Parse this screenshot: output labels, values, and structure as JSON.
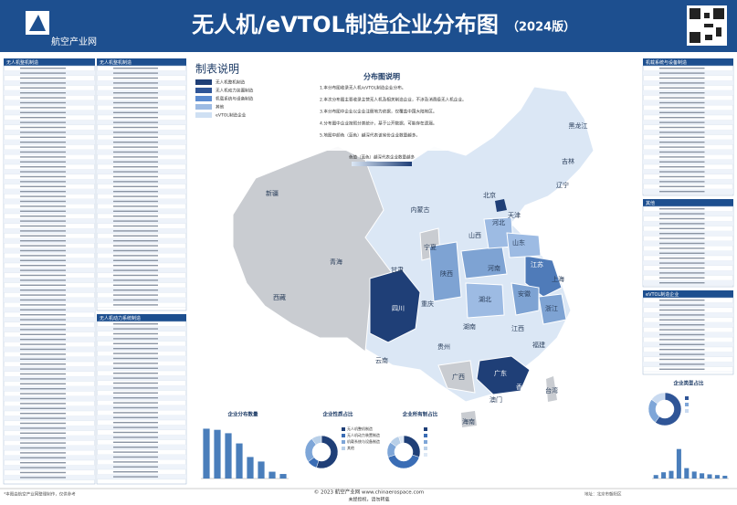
{
  "header": {
    "logo": "航空产业网",
    "title": "无人机/eVTOL制造企业分布图",
    "edition": "（2024版）"
  },
  "legend": {
    "title": "制表说明",
    "items": [
      {
        "label": "无人机整机制造",
        "color": "#1f3f77"
      },
      {
        "label": "无人机动力装置制造",
        "color": "#2f5597"
      },
      {
        "label": "机载系统与设备制造",
        "color": "#5b8bd0"
      },
      {
        "label": "其他",
        "color": "#9dbbe3"
      },
      {
        "label": "eVTOL制造企业",
        "color": "#cfe0f3"
      }
    ]
  },
  "notes": {
    "title": "分布图说明",
    "lines": [
      "1.本分布图收录无人机/eVTOL制造企业分布。",
      "2.本次分布图主要收录主营无人机及相关制造企业，不涉及消费级无人机企业。",
      "3.本分布图中企业以企业注册地为依据，仅覆盖中国大陆地区。",
      "4.分布图中企业按照分类统计，基于公开数据，可能存在遗漏。",
      "5.地图中颜色（蓝色）越深代表该省份企业数量越多。"
    ],
    "scale": "色值（蓝色）越深代表企业数量越多"
  },
  "map": {
    "labels": [
      "新疆",
      "西藏",
      "青海",
      "甘肃",
      "内蒙古",
      "宁夏",
      "陕西",
      "四川",
      "云南",
      "重庆",
      "贵州",
      "广西",
      "海南",
      "广东",
      "湖南",
      "湖北",
      "河南",
      "山西",
      "河北",
      "北京",
      "天津",
      "山东",
      "江苏",
      "安徽",
      "上海",
      "浙江",
      "江西",
      "福建",
      "台湾",
      "香港",
      "澳门",
      "辽宁",
      "吉林",
      "黑龙江"
    ]
  },
  "tables": [
    {
      "title": "无人机整机制造"
    },
    {
      "title": "无人机整机制造"
    },
    {
      "title": "无人机动力系统制造"
    },
    {
      "title": "机载系统与设备制造"
    },
    {
      "title": "其他"
    },
    {
      "title": "eVTOL制造企业"
    }
  ],
  "chart_data": [
    {
      "type": "bar",
      "title": "企业分布数量",
      "values": [
        88,
        86,
        80,
        62,
        38,
        30,
        12,
        8
      ],
      "color": "#4a7ebb",
      "ylim": [
        0,
        100
      ]
    },
    {
      "type": "pie",
      "title": "企业性质占比",
      "categories": [
        "无人机整机制造",
        "无人机动力装置制造",
        "机载系统与设备制造",
        "其他"
      ],
      "values": [
        55,
        10,
        25,
        10
      ],
      "colors": [
        "#1f3f77",
        "#3a6db5",
        "#7ea6d8",
        "#b8cfe8"
      ]
    },
    {
      "type": "pie",
      "title": "企业所有制占比",
      "categories": [
        null,
        null,
        null,
        null,
        null
      ],
      "values": [
        30,
        40,
        15,
        10,
        5
      ],
      "colors": [
        "#1f3f77",
        "#3a6db5",
        "#7ea6d8",
        "#b8cfe8",
        "#dde8f5"
      ]
    },
    {
      "type": "pie",
      "title": "企业类型占比",
      "categories": [
        null,
        null,
        null
      ],
      "values": [
        60,
        25,
        15
      ],
      "colors": [
        "#2f5597",
        "#7ea6d8",
        "#c9daf0"
      ]
    },
    {
      "type": "bar",
      "values": [
        10,
        18,
        22,
        85,
        30,
        20,
        15,
        12,
        10,
        8
      ],
      "color": "#4a7ebb",
      "ylim": [
        0,
        100
      ]
    }
  ],
  "footer": {
    "copyright": "© 2023 航空产业网 www.chinaerospace.com",
    "notice": "未经授权，请勿转载",
    "left": "*本图由航空产业网整理制作，仅供参考",
    "right": "地址：北京市朝阳区"
  }
}
